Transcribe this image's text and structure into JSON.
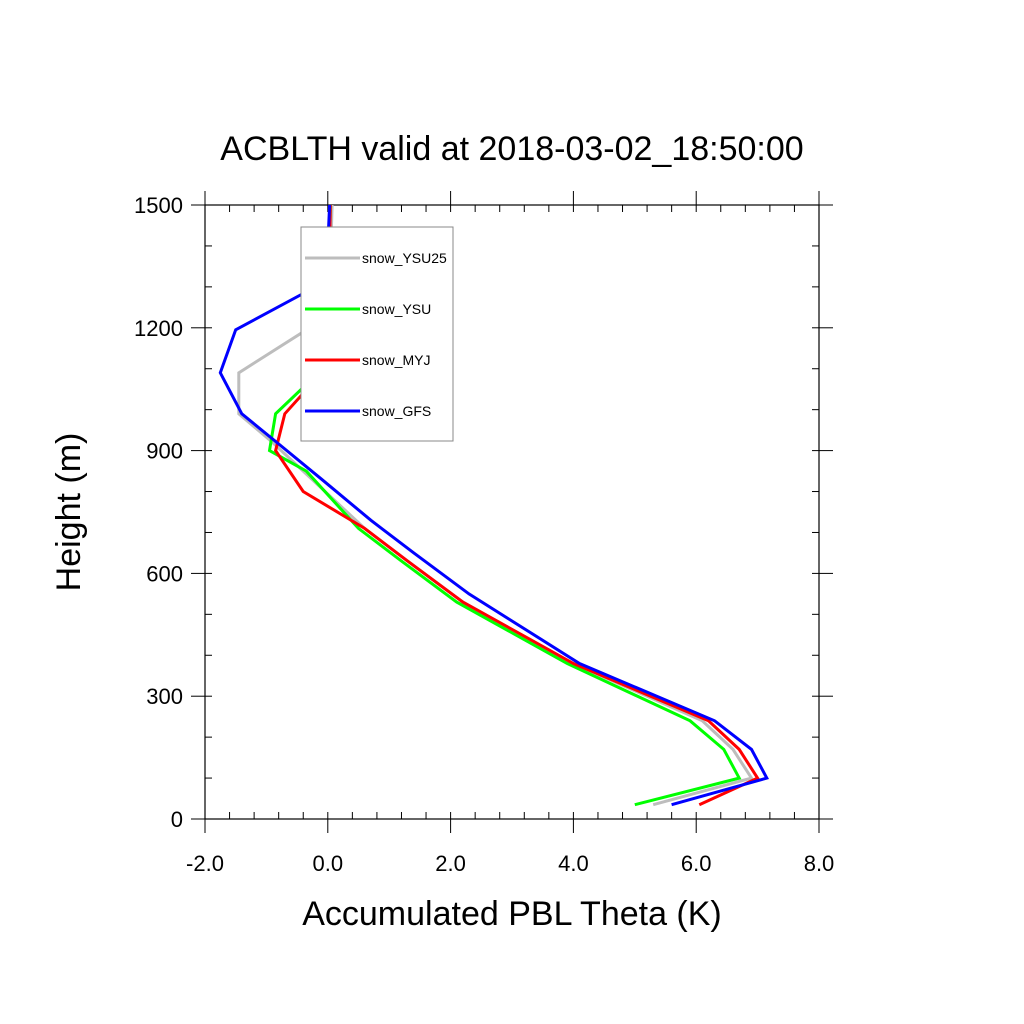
{
  "chart_data": {
    "type": "line",
    "title": "ACBLTH valid at 2018-03-02_18:50:00",
    "xlabel": "Accumulated PBL Theta (K)",
    "ylabel": "Height (m)",
    "xlim": [
      -2.0,
      8.0
    ],
    "ylim": [
      0,
      1500
    ],
    "xticks": [
      -2.0,
      0.0,
      2.0,
      4.0,
      6.0,
      8.0
    ],
    "xtick_labels": [
      "-2.0",
      "0.0",
      "2.0",
      "4.0",
      "6.0",
      "8.0"
    ],
    "yticks": [
      0,
      300,
      600,
      900,
      1200,
      1500
    ],
    "ytick_labels": [
      "0",
      "300",
      "600",
      "900",
      "1200",
      "1500"
    ],
    "x_minor_step": 0.4,
    "y_minor_step": 100,
    "grid": false,
    "legend_position": "top-left",
    "series": [
      {
        "name": "snow_YSU25",
        "color": "#bdbdbd",
        "points": [
          [
            5.3,
            35
          ],
          [
            6.9,
            100
          ],
          [
            6.6,
            170
          ],
          [
            6.1,
            240
          ],
          [
            4.0,
            380
          ],
          [
            2.2,
            530
          ],
          [
            1.3,
            630
          ],
          [
            0.6,
            710
          ],
          [
            -0.4,
            850
          ],
          [
            -0.9,
            920
          ],
          [
            -1.45,
            990
          ],
          [
            -1.45,
            1090
          ],
          [
            -0.4,
            1190
          ],
          [
            -0.05,
            1290
          ],
          [
            0.05,
            1400
          ],
          [
            0.07,
            1500
          ]
        ]
      },
      {
        "name": "snow_YSU",
        "color": "#00ff00",
        "points": [
          [
            5.0,
            35
          ],
          [
            6.7,
            100
          ],
          [
            6.45,
            170
          ],
          [
            5.9,
            240
          ],
          [
            3.9,
            380
          ],
          [
            2.1,
            530
          ],
          [
            1.2,
            630
          ],
          [
            0.5,
            710
          ],
          [
            -0.35,
            850
          ],
          [
            -0.95,
            900
          ],
          [
            -0.85,
            990
          ],
          [
            -0.15,
            1090
          ],
          [
            0.0,
            1200
          ],
          [
            0.02,
            1300
          ],
          [
            0.04,
            1500
          ]
        ]
      },
      {
        "name": "snow_MYJ",
        "color": "#ff0000",
        "points": [
          [
            6.05,
            35
          ],
          [
            7.0,
            100
          ],
          [
            6.7,
            170
          ],
          [
            6.2,
            240
          ],
          [
            4.0,
            380
          ],
          [
            2.2,
            530
          ],
          [
            1.3,
            630
          ],
          [
            0.6,
            710
          ],
          [
            -0.4,
            800
          ],
          [
            -0.85,
            900
          ],
          [
            -0.7,
            990
          ],
          [
            -0.1,
            1090
          ],
          [
            0.0,
            1200
          ],
          [
            0.02,
            1300
          ],
          [
            0.04,
            1500
          ]
        ]
      },
      {
        "name": "snow_GFS",
        "color": "#0000ff",
        "points": [
          [
            5.6,
            35
          ],
          [
            7.15,
            100
          ],
          [
            6.9,
            170
          ],
          [
            6.3,
            240
          ],
          [
            4.1,
            380
          ],
          [
            2.3,
            550
          ],
          [
            1.4,
            650
          ],
          [
            0.7,
            730
          ],
          [
            -0.1,
            830
          ],
          [
            -0.75,
            910
          ],
          [
            -1.4,
            990
          ],
          [
            -1.75,
            1090
          ],
          [
            -1.5,
            1195
          ],
          [
            -0.2,
            1300
          ],
          [
            0.0,
            1400
          ],
          [
            0.03,
            1500
          ]
        ]
      }
    ]
  }
}
